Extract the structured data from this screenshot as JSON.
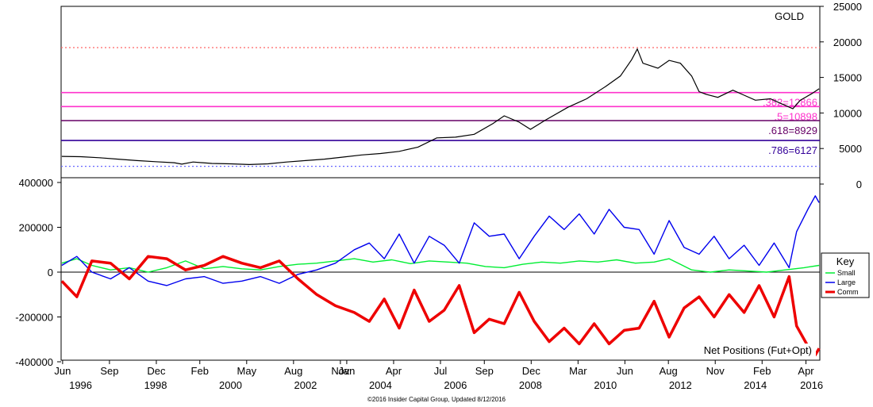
{
  "chart_data": [
    {
      "type": "line",
      "title": "GOLD",
      "y_axis_side": "right",
      "yticks": [
        0,
        5000,
        10000,
        15000,
        20000,
        25000
      ],
      "ylim": [
        0,
        25000
      ],
      "series": [
        {
          "color": "#000000",
          "points": [
            [
              1996.4,
              3900
            ],
            [
              1996.9,
              3850
            ],
            [
              1997.4,
              3700
            ],
            [
              1997.9,
              3500
            ],
            [
              1998.4,
              3300
            ],
            [
              1998.9,
              3150
            ],
            [
              1999.4,
              3000
            ],
            [
              1999.6,
              2800
            ],
            [
              1999.9,
              3100
            ],
            [
              2000.4,
              2900
            ],
            [
              2000.9,
              2850
            ],
            [
              2001.4,
              2750
            ],
            [
              2001.9,
              2850
            ],
            [
              2002.4,
              3100
            ],
            [
              2002.9,
              3300
            ],
            [
              2003.4,
              3500
            ],
            [
              2003.9,
              3800
            ],
            [
              2004.4,
              4100
            ],
            [
              2004.9,
              4300
            ],
            [
              2005.4,
              4600
            ],
            [
              2005.9,
              5200
            ],
            [
              2006.4,
              6500
            ],
            [
              2006.9,
              6600
            ],
            [
              2007.4,
              7000
            ],
            [
              2007.9,
              8500
            ],
            [
              2008.2,
              9600
            ],
            [
              2008.6,
              8700
            ],
            [
              2008.9,
              7700
            ],
            [
              2009.3,
              9000
            ],
            [
              2009.9,
              10800
            ],
            [
              2010.4,
              12000
            ],
            [
              2010.9,
              13700
            ],
            [
              2011.3,
              15200
            ],
            [
              2011.6,
              17500
            ],
            [
              2011.75,
              19000
            ],
            [
              2011.9,
              17000
            ],
            [
              2012.3,
              16300
            ],
            [
              2012.6,
              17400
            ],
            [
              2012.9,
              17000
            ],
            [
              2013.2,
              15200
            ],
            [
              2013.4,
              13000
            ],
            [
              2013.6,
              12600
            ],
            [
              2013.9,
              12200
            ],
            [
              2014.3,
              13200
            ],
            [
              2014.6,
              12500
            ],
            [
              2014.9,
              11800
            ],
            [
              2015.3,
              12000
            ],
            [
              2015.6,
              11300
            ],
            [
              2015.9,
              10600
            ],
            [
              2016.1,
              11800
            ],
            [
              2016.4,
              12700
            ],
            [
              2016.6,
              13400
            ]
          ]
        }
      ],
      "reference_lines": [
        {
          "label": "",
          "value": 19200,
          "color": "#ff6666",
          "style": "dotted"
        },
        {
          "label": ".382=12866",
          "value": 12866,
          "color": "#ff33cc",
          "style": "solid"
        },
        {
          "label": ".5=10898",
          "value": 10898,
          "color": "#ff33cc",
          "style": "solid"
        },
        {
          "label": ".618=8929",
          "value": 8929,
          "color": "#660066",
          "style": "solid"
        },
        {
          "label": ".786=6127",
          "value": 6127,
          "color": "#330099",
          "style": "solid"
        },
        {
          "label": "",
          "value": 2500,
          "color": "#6666ff",
          "style": "dotted"
        }
      ],
      "grid": false
    },
    {
      "type": "line",
      "title": "Net Positions (Fut+Opt)",
      "y_axis_side": "left",
      "yticks": [
        -400000,
        -200000,
        0,
        200000,
        400000
      ],
      "ylim": [
        -400000,
        400000
      ],
      "xlim": [
        1996.38,
        2016.62
      ],
      "xticks": [
        {
          "x": 1996.42,
          "label": "Jun"
        },
        {
          "x": 1997.67,
          "label": "Sep"
        },
        {
          "x": 1998.92,
          "label": "Dec"
        },
        {
          "x": 2000.08,
          "label": "Feb"
        },
        {
          "x": 2001.33,
          "label": "May"
        },
        {
          "x": 2002.58,
          "label": "Aug"
        },
        {
          "x": 2003.83,
          "label": "Nov"
        },
        {
          "x": 2004.0,
          "label": "Jan"
        },
        {
          "x": 2005.25,
          "label": "Apr"
        },
        {
          "x": 2006.5,
          "label": "Jul"
        },
        {
          "x": 2007.67,
          "label": "Sep"
        },
        {
          "x": 2008.92,
          "label": "Dec"
        },
        {
          "x": 2010.17,
          "label": "Mar"
        },
        {
          "x": 2011.42,
          "label": "Jun"
        },
        {
          "x": 2012.58,
          "label": "Aug"
        },
        {
          "x": 2013.83,
          "label": "Nov"
        },
        {
          "x": 2015.08,
          "label": "Feb"
        },
        {
          "x": 2016.25,
          "label": "Apr"
        }
      ],
      "year_labels": [
        {
          "x": 1996.9,
          "label": "1996"
        },
        {
          "x": 1998.9,
          "label": "1998"
        },
        {
          "x": 2000.9,
          "label": "2000"
        },
        {
          "x": 2002.9,
          "label": "2002"
        },
        {
          "x": 2004.9,
          "label": "2004"
        },
        {
          "x": 2006.9,
          "label": "2006"
        },
        {
          "x": 2008.9,
          "label": "2008"
        },
        {
          "x": 2010.9,
          "label": "2010"
        },
        {
          "x": 2012.9,
          "label": "2012"
        },
        {
          "x": 2014.9,
          "label": "2014"
        },
        {
          "x": 2016.4,
          "label": "2016"
        }
      ],
      "legend": {
        "title": "Key",
        "placement": "right"
      },
      "grid": false,
      "series": [
        {
          "name": "Small",
          "color": "#00ee33",
          "points": [
            [
              1996.4,
              40000
            ],
            [
              1996.8,
              60000
            ],
            [
              1997.2,
              30000
            ],
            [
              1997.7,
              10000
            ],
            [
              1998.2,
              20000
            ],
            [
              1998.7,
              0
            ],
            [
              1999.2,
              20000
            ],
            [
              1999.7,
              50000
            ],
            [
              2000.2,
              15000
            ],
            [
              2000.7,
              25000
            ],
            [
              2001.2,
              15000
            ],
            [
              2001.7,
              10000
            ],
            [
              2002.2,
              25000
            ],
            [
              2002.7,
              35000
            ],
            [
              2003.2,
              40000
            ],
            [
              2003.7,
              50000
            ],
            [
              2004.2,
              60000
            ],
            [
              2004.7,
              45000
            ],
            [
              2005.2,
              55000
            ],
            [
              2005.7,
              38000
            ],
            [
              2006.2,
              50000
            ],
            [
              2006.7,
              45000
            ],
            [
              2007.2,
              40000
            ],
            [
              2007.7,
              25000
            ],
            [
              2008.2,
              20000
            ],
            [
              2008.7,
              35000
            ],
            [
              2009.2,
              45000
            ],
            [
              2009.7,
              40000
            ],
            [
              2010.2,
              50000
            ],
            [
              2010.7,
              45000
            ],
            [
              2011.2,
              55000
            ],
            [
              2011.7,
              40000
            ],
            [
              2012.2,
              45000
            ],
            [
              2012.6,
              60000
            ],
            [
              2012.9,
              35000
            ],
            [
              2013.2,
              10000
            ],
            [
              2013.7,
              0
            ],
            [
              2014.2,
              10000
            ],
            [
              2014.7,
              5000
            ],
            [
              2015.2,
              0
            ],
            [
              2015.7,
              10000
            ],
            [
              2016.2,
              20000
            ],
            [
              2016.6,
              30000
            ]
          ]
        },
        {
          "name": "Large",
          "color": "#0000ee",
          "points": [
            [
              1996.4,
              30000
            ],
            [
              1996.8,
              70000
            ],
            [
              1997.2,
              0
            ],
            [
              1997.7,
              -30000
            ],
            [
              1998.2,
              20000
            ],
            [
              1998.7,
              -40000
            ],
            [
              1999.2,
              -60000
            ],
            [
              1999.7,
              -30000
            ],
            [
              2000.2,
              -20000
            ],
            [
              2000.7,
              -50000
            ],
            [
              2001.2,
              -40000
            ],
            [
              2001.7,
              -20000
            ],
            [
              2002.2,
              -50000
            ],
            [
              2002.7,
              -10000
            ],
            [
              2003.2,
              10000
            ],
            [
              2003.7,
              40000
            ],
            [
              2004.2,
              100000
            ],
            [
              2004.6,
              130000
            ],
            [
              2005.0,
              60000
            ],
            [
              2005.4,
              170000
            ],
            [
              2005.8,
              40000
            ],
            [
              2006.2,
              160000
            ],
            [
              2006.6,
              120000
            ],
            [
              2007.0,
              40000
            ],
            [
              2007.4,
              220000
            ],
            [
              2007.8,
              160000
            ],
            [
              2008.2,
              170000
            ],
            [
              2008.6,
              60000
            ],
            [
              2009.0,
              160000
            ],
            [
              2009.4,
              250000
            ],
            [
              2009.8,
              190000
            ],
            [
              2010.2,
              260000
            ],
            [
              2010.6,
              170000
            ],
            [
              2011.0,
              280000
            ],
            [
              2011.4,
              200000
            ],
            [
              2011.8,
              190000
            ],
            [
              2012.2,
              80000
            ],
            [
              2012.6,
              230000
            ],
            [
              2013.0,
              110000
            ],
            [
              2013.4,
              80000
            ],
            [
              2013.8,
              160000
            ],
            [
              2014.2,
              60000
            ],
            [
              2014.6,
              120000
            ],
            [
              2015.0,
              30000
            ],
            [
              2015.4,
              130000
            ],
            [
              2015.8,
              20000
            ],
            [
              2016.0,
              180000
            ],
            [
              2016.3,
              280000
            ],
            [
              2016.5,
              340000
            ],
            [
              2016.6,
              310000
            ]
          ]
        },
        {
          "name": "Comm",
          "color": "#ee0000",
          "points": [
            [
              1996.4,
              -40000
            ],
            [
              1996.8,
              -110000
            ],
            [
              1997.2,
              50000
            ],
            [
              1997.7,
              40000
            ],
            [
              1998.2,
              -30000
            ],
            [
              1998.7,
              70000
            ],
            [
              1999.2,
              60000
            ],
            [
              1999.7,
              10000
            ],
            [
              2000.2,
              30000
            ],
            [
              2000.7,
              70000
            ],
            [
              2001.2,
              40000
            ],
            [
              2001.7,
              20000
            ],
            [
              2002.2,
              50000
            ],
            [
              2002.7,
              -30000
            ],
            [
              2003.2,
              -100000
            ],
            [
              2003.7,
              -150000
            ],
            [
              2004.2,
              -180000
            ],
            [
              2004.6,
              -220000
            ],
            [
              2005.0,
              -120000
            ],
            [
              2005.4,
              -250000
            ],
            [
              2005.8,
              -80000
            ],
            [
              2006.2,
              -220000
            ],
            [
              2006.6,
              -170000
            ],
            [
              2007.0,
              -60000
            ],
            [
              2007.4,
              -270000
            ],
            [
              2007.8,
              -210000
            ],
            [
              2008.2,
              -230000
            ],
            [
              2008.6,
              -90000
            ],
            [
              2009.0,
              -220000
            ],
            [
              2009.4,
              -310000
            ],
            [
              2009.8,
              -250000
            ],
            [
              2010.2,
              -320000
            ],
            [
              2010.6,
              -230000
            ],
            [
              2011.0,
              -320000
            ],
            [
              2011.4,
              -260000
            ],
            [
              2011.8,
              -250000
            ],
            [
              2012.2,
              -130000
            ],
            [
              2012.6,
              -290000
            ],
            [
              2013.0,
              -160000
            ],
            [
              2013.4,
              -110000
            ],
            [
              2013.8,
              -200000
            ],
            [
              2014.2,
              -100000
            ],
            [
              2014.6,
              -180000
            ],
            [
              2015.0,
              -60000
            ],
            [
              2015.4,
              -200000
            ],
            [
              2015.8,
              -20000
            ],
            [
              2016.0,
              -240000
            ],
            [
              2016.3,
              -330000
            ],
            [
              2016.5,
              -370000
            ],
            [
              2016.6,
              -340000
            ]
          ]
        }
      ]
    }
  ],
  "footer": {
    "copyright": "©2016 Insider Capital Group, Updated 8/12/2016"
  }
}
